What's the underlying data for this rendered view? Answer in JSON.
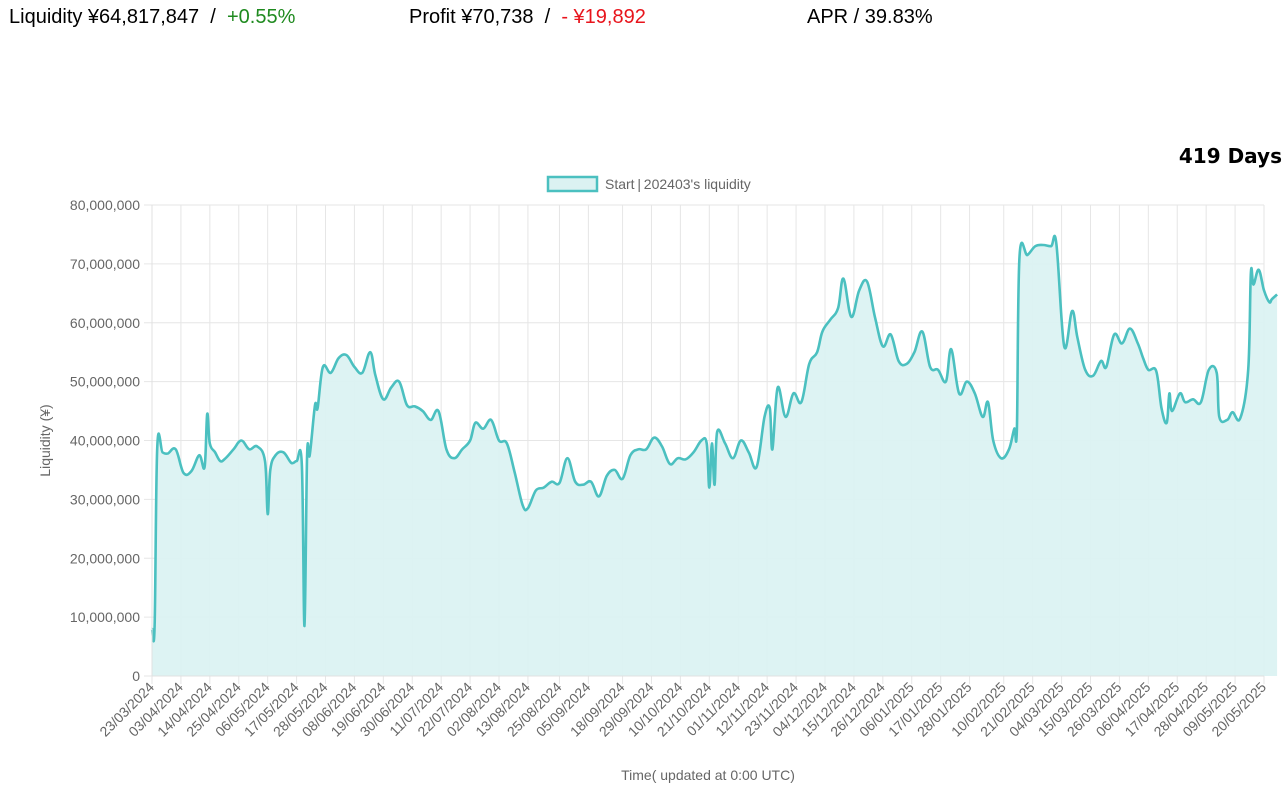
{
  "header": {
    "liquidity_label": "Liquidity ¥64,817,847",
    "liquidity_sep": "/",
    "liquidity_change": "+0.55%",
    "profit_label": "Profit ¥70,738",
    "profit_sep": "/",
    "profit_change": "- ¥19,892",
    "apr_label": "APR / 39.83%",
    "days": "419 Days"
  },
  "colors": {
    "positive": "#1f8a1f",
    "negative": "#e8141c",
    "series_line": "#4bc0c0",
    "series_fill": "#dbf2f2"
  },
  "chart_data": {
    "type": "area",
    "title": "",
    "legend": {
      "placement": "top-center",
      "label": "Start | 202403's liquidity"
    },
    "xlabel": "Time( updated at 0:00 UTC)",
    "ylabel": "Liquidity (¥)",
    "ylim": [
      0,
      80000000
    ],
    "yticks": [
      "0",
      "10,000,000",
      "20,000,000",
      "30,000,000",
      "40,000,000",
      "50,000,000",
      "60,000,000",
      "70,000,000",
      "80,000,000"
    ],
    "grid": true,
    "x_tick_labels": [
      "23/03/2024",
      "03/04/2024",
      "14/04/2024",
      "25/04/2024",
      "06/05/2024",
      "17/05/2024",
      "28/05/2024",
      "08/06/2024",
      "19/06/2024",
      "30/06/2024",
      "11/07/2024",
      "22/07/2024",
      "02/08/2024",
      "13/08/2024",
      "25/08/2024",
      "05/09/2024",
      "18/09/2024",
      "29/09/2024",
      "10/10/2024",
      "21/10/2024",
      "01/11/2024",
      "12/11/2024",
      "23/11/2024",
      "04/12/2024",
      "15/12/2024",
      "26/12/2024",
      "06/01/2025",
      "17/01/2025",
      "28/01/2025",
      "10/02/2025",
      "21/02/2025",
      "04/03/2025",
      "15/03/2025",
      "26/03/2025",
      "06/04/2025",
      "17/04/2025",
      "28/04/2025",
      "09/05/2025",
      "20/05/2025"
    ],
    "x_range": [
      "23/03/2024",
      "20/05/2025"
    ],
    "series": [
      {
        "name": "Start | 202403's liquidity",
        "points": [
          [
            "2024-03-23",
            8000000
          ],
          [
            "2024-03-24",
            8500000
          ],
          [
            "2024-03-25",
            39000000
          ],
          [
            "2024-03-27",
            38000000
          ],
          [
            "2024-03-29",
            37800000
          ],
          [
            "2024-04-01",
            38500000
          ],
          [
            "2024-04-04",
            34500000
          ],
          [
            "2024-04-07",
            34800000
          ],
          [
            "2024-04-10",
            37500000
          ],
          [
            "2024-04-12",
            35500000
          ],
          [
            "2024-04-13",
            44500000
          ],
          [
            "2024-04-14",
            39500000
          ],
          [
            "2024-04-16",
            38000000
          ],
          [
            "2024-04-18",
            36500000
          ],
          [
            "2024-04-20",
            37000000
          ],
          [
            "2024-04-23",
            38500000
          ],
          [
            "2024-04-26",
            40000000
          ],
          [
            "2024-04-29",
            38500000
          ],
          [
            "2024-05-02",
            39000000
          ],
          [
            "2024-05-05",
            36500000
          ],
          [
            "2024-05-06",
            27500000
          ],
          [
            "2024-05-07",
            35000000
          ],
          [
            "2024-05-09",
            37500000
          ],
          [
            "2024-05-12",
            38000000
          ],
          [
            "2024-05-15",
            36200000
          ],
          [
            "2024-05-17",
            36500000
          ],
          [
            "2024-05-19",
            36000000
          ],
          [
            "2024-05-20",
            8500000
          ],
          [
            "2024-05-21",
            37500000
          ],
          [
            "2024-05-22",
            37500000
          ],
          [
            "2024-05-24",
            46000000
          ],
          [
            "2024-05-25",
            45500000
          ],
          [
            "2024-05-27",
            52500000
          ],
          [
            "2024-05-30",
            51500000
          ],
          [
            "2024-06-02",
            54000000
          ],
          [
            "2024-06-05",
            54500000
          ],
          [
            "2024-06-08",
            52500000
          ],
          [
            "2024-06-11",
            51500000
          ],
          [
            "2024-06-14",
            55000000
          ],
          [
            "2024-06-16",
            51000000
          ],
          [
            "2024-06-19",
            47000000
          ],
          [
            "2024-06-22",
            49000000
          ],
          [
            "2024-06-25",
            50000000
          ],
          [
            "2024-06-28",
            46000000
          ],
          [
            "2024-07-01",
            45800000
          ],
          [
            "2024-07-04",
            45000000
          ],
          [
            "2024-07-07",
            43500000
          ],
          [
            "2024-07-10",
            45000000
          ],
          [
            "2024-07-13",
            38500000
          ],
          [
            "2024-07-16",
            37000000
          ],
          [
            "2024-07-19",
            38500000
          ],
          [
            "2024-07-22",
            40000000
          ],
          [
            "2024-07-24",
            43000000
          ],
          [
            "2024-07-27",
            42000000
          ],
          [
            "2024-07-30",
            43500000
          ],
          [
            "2024-08-02",
            40000000
          ],
          [
            "2024-08-05",
            39500000
          ],
          [
            "2024-08-08",
            34500000
          ],
          [
            "2024-08-11",
            29000000
          ],
          [
            "2024-08-13",
            28500000
          ],
          [
            "2024-08-16",
            31500000
          ],
          [
            "2024-08-19",
            32000000
          ],
          [
            "2024-08-22",
            33000000
          ],
          [
            "2024-08-25",
            32800000
          ],
          [
            "2024-08-28",
            37000000
          ],
          [
            "2024-08-31",
            33000000
          ],
          [
            "2024-09-03",
            32500000
          ],
          [
            "2024-09-06",
            33000000
          ],
          [
            "2024-09-09",
            30500000
          ],
          [
            "2024-09-12",
            34000000
          ],
          [
            "2024-09-15",
            35000000
          ],
          [
            "2024-09-18",
            33500000
          ],
          [
            "2024-09-21",
            37500000
          ],
          [
            "2024-09-24",
            38500000
          ],
          [
            "2024-09-27",
            38500000
          ],
          [
            "2024-09-30",
            40500000
          ],
          [
            "2024-10-03",
            39000000
          ],
          [
            "2024-10-06",
            36000000
          ],
          [
            "2024-10-09",
            37000000
          ],
          [
            "2024-10-12",
            36800000
          ],
          [
            "2024-10-15",
            38000000
          ],
          [
            "2024-10-18",
            40000000
          ],
          [
            "2024-10-20",
            39500000
          ],
          [
            "2024-10-21",
            32000000
          ],
          [
            "2024-10-22",
            39500000
          ],
          [
            "2024-10-23",
            32500000
          ],
          [
            "2024-10-24",
            41500000
          ],
          [
            "2024-10-27",
            39500000
          ],
          [
            "2024-10-30",
            37000000
          ],
          [
            "2024-11-02",
            40000000
          ],
          [
            "2024-11-05",
            38000000
          ],
          [
            "2024-11-08",
            35500000
          ],
          [
            "2024-11-11",
            44000000
          ],
          [
            "2024-11-13",
            45500000
          ],
          [
            "2024-11-14",
            38500000
          ],
          [
            "2024-11-16",
            49000000
          ],
          [
            "2024-11-19",
            44000000
          ],
          [
            "2024-11-22",
            48000000
          ],
          [
            "2024-11-25",
            46500000
          ],
          [
            "2024-11-28",
            53000000
          ],
          [
            "2024-12-01",
            55000000
          ],
          [
            "2024-12-03",
            58500000
          ],
          [
            "2024-12-06",
            60500000
          ],
          [
            "2024-12-09",
            62500000
          ],
          [
            "2024-12-11",
            67500000
          ],
          [
            "2024-12-14",
            61000000
          ],
          [
            "2024-12-17",
            65500000
          ],
          [
            "2024-12-20",
            67000000
          ],
          [
            "2024-12-23",
            61000000
          ],
          [
            "2024-12-26",
            56000000
          ],
          [
            "2024-12-29",
            58000000
          ],
          [
            "2025-01-01",
            53500000
          ],
          [
            "2025-01-04",
            53000000
          ],
          [
            "2025-01-07",
            55000000
          ],
          [
            "2025-01-10",
            58500000
          ],
          [
            "2025-01-13",
            52500000
          ],
          [
            "2025-01-16",
            52000000
          ],
          [
            "2025-01-19",
            50000000
          ],
          [
            "2025-01-21",
            55500000
          ],
          [
            "2025-01-24",
            48000000
          ],
          [
            "2025-01-27",
            50000000
          ],
          [
            "2025-01-30",
            48000000
          ],
          [
            "2025-02-02",
            44000000
          ],
          [
            "2025-02-04",
            46500000
          ],
          [
            "2025-02-06",
            40000000
          ],
          [
            "2025-02-09",
            37000000
          ],
          [
            "2025-02-12",
            38500000
          ],
          [
            "2025-02-14",
            42000000
          ],
          [
            "2025-02-15",
            42000000
          ],
          [
            "2025-02-16",
            71200000
          ],
          [
            "2025-02-19",
            71500000
          ],
          [
            "2025-02-22",
            73000000
          ],
          [
            "2025-02-25",
            73200000
          ],
          [
            "2025-02-28",
            73000000
          ],
          [
            "2025-03-02",
            73500000
          ],
          [
            "2025-03-05",
            56000000
          ],
          [
            "2025-03-08",
            62000000
          ],
          [
            "2025-03-10",
            57500000
          ],
          [
            "2025-03-13",
            52000000
          ],
          [
            "2025-03-16",
            51000000
          ],
          [
            "2025-03-19",
            53500000
          ],
          [
            "2025-03-21",
            52500000
          ],
          [
            "2025-03-24",
            58000000
          ],
          [
            "2025-03-27",
            56500000
          ],
          [
            "2025-03-30",
            59000000
          ],
          [
            "2025-04-02",
            56500000
          ],
          [
            "2025-04-04",
            54000000
          ],
          [
            "2025-04-06",
            52000000
          ],
          [
            "2025-04-09",
            51800000
          ],
          [
            "2025-04-11",
            45500000
          ],
          [
            "2025-04-13",
            43000000
          ],
          [
            "2025-04-14",
            48000000
          ],
          [
            "2025-04-15",
            45000000
          ],
          [
            "2025-04-18",
            48000000
          ],
          [
            "2025-04-20",
            46500000
          ],
          [
            "2025-04-23",
            47000000
          ],
          [
            "2025-04-26",
            46500000
          ],
          [
            "2025-04-29",
            52000000
          ],
          [
            "2025-05-02",
            51500000
          ],
          [
            "2025-05-03",
            44000000
          ],
          [
            "2025-05-06",
            43500000
          ],
          [
            "2025-05-08",
            44800000
          ],
          [
            "2025-05-11",
            43800000
          ],
          [
            "2025-05-14",
            52000000
          ],
          [
            "2025-05-15",
            68500000
          ],
          [
            "2025-05-16",
            66500000
          ],
          [
            "2025-05-18",
            69000000
          ],
          [
            "2025-05-20",
            65500000
          ],
          [
            "2025-05-22",
            63500000
          ],
          [
            "2025-05-23",
            64000000
          ],
          [
            "2025-05-25",
            64800000
          ]
        ]
      }
    ]
  }
}
